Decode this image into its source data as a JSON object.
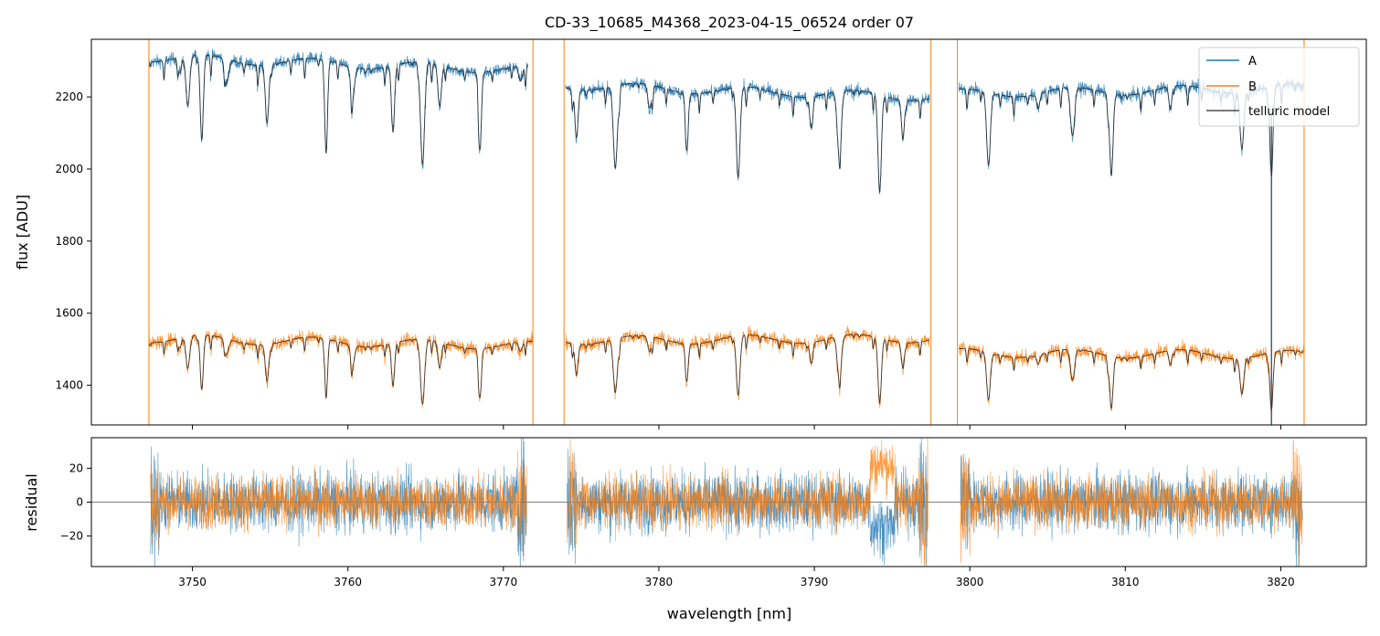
{
  "chart_data": [
    {
      "type": "line",
      "title": "CD-33_10685_M4368_2023-04-15_06524  order 07",
      "xlabel": "",
      "ylabel": "flux [ADU]",
      "xlim": [
        3743.5,
        3825.5
      ],
      "ylim": [
        1290,
        2360
      ],
      "yticks": [
        1400,
        1600,
        1800,
        2000,
        2200
      ],
      "xticks": [
        3750,
        3760,
        3770,
        3780,
        3790,
        3800,
        3810,
        3820
      ],
      "grid": false,
      "legend_position": "top-right",
      "series": [
        {
          "name": "A",
          "color": "#1f77b4",
          "segments": [
            [
              3747.2,
              3771.6,
              2310,
              2275
            ],
            [
              3774.0,
              3797.4,
              2232,
              2200
            ],
            [
              3799.3,
              3821.5,
              2210,
              2225
            ]
          ],
          "lines": [
            3749.2,
            3749.7,
            3750.6,
            3752.2,
            3754.8,
            3758.6,
            3760.3,
            3762.9,
            3764.8,
            3765.9,
            3768.5,
            3771.1,
            3774.7,
            3777.2,
            3779.4,
            3781.8,
            3785.1,
            3789.8,
            3791.6,
            3794.2,
            3795.7,
            3801.2,
            3804.4,
            3806.6,
            3809.1,
            3812.9,
            3817.5,
            3819.4
          ]
        },
        {
          "name": "B",
          "color": "#ff7f0e",
          "segments": [
            [
              3747.2,
              3771.9,
              1530,
              1510
            ],
            [
              3774.0,
              3797.4,
              1525,
              1530
            ],
            [
              3799.3,
              3821.5,
              1490,
              1485
            ]
          ],
          "lines": [
            3749.2,
            3749.7,
            3750.6,
            3752.2,
            3754.8,
            3758.6,
            3760.3,
            3762.9,
            3764.8,
            3765.9,
            3768.5,
            3771.1,
            3774.7,
            3777.2,
            3779.4,
            3781.8,
            3785.1,
            3789.8,
            3791.6,
            3794.2,
            3795.7,
            3801.2,
            3804.4,
            3806.6,
            3809.1,
            3812.9,
            3817.5,
            3819.4
          ],
          "edge_spikes": [
            3747.2,
            3771.9,
            3773.9,
            3797.5,
            3799.2,
            3821.5
          ]
        },
        {
          "name": "telluric model",
          "color": "#222222"
        }
      ]
    },
    {
      "type": "line",
      "title": "",
      "xlabel": "wavelength [nm]",
      "ylabel": "residual",
      "xlim": [
        3743.5,
        3825.5
      ],
      "ylim": [
        -38,
        38
      ],
      "yticks": [
        -20,
        0,
        20
      ],
      "xticks": [
        3750,
        3760,
        3770,
        3780,
        3790,
        3800,
        3810,
        3820
      ],
      "xticklabels": [
        "3750",
        "3760",
        "3770",
        "3780",
        "3790",
        "3800",
        "3810",
        "3820"
      ],
      "grid": false,
      "zero_line": true,
      "series": [
        {
          "name": "A",
          "color": "#1f77b4",
          "amplitude": 16
        },
        {
          "name": "B",
          "color": "#ff7f0e",
          "amplitude": 14
        }
      ]
    }
  ]
}
